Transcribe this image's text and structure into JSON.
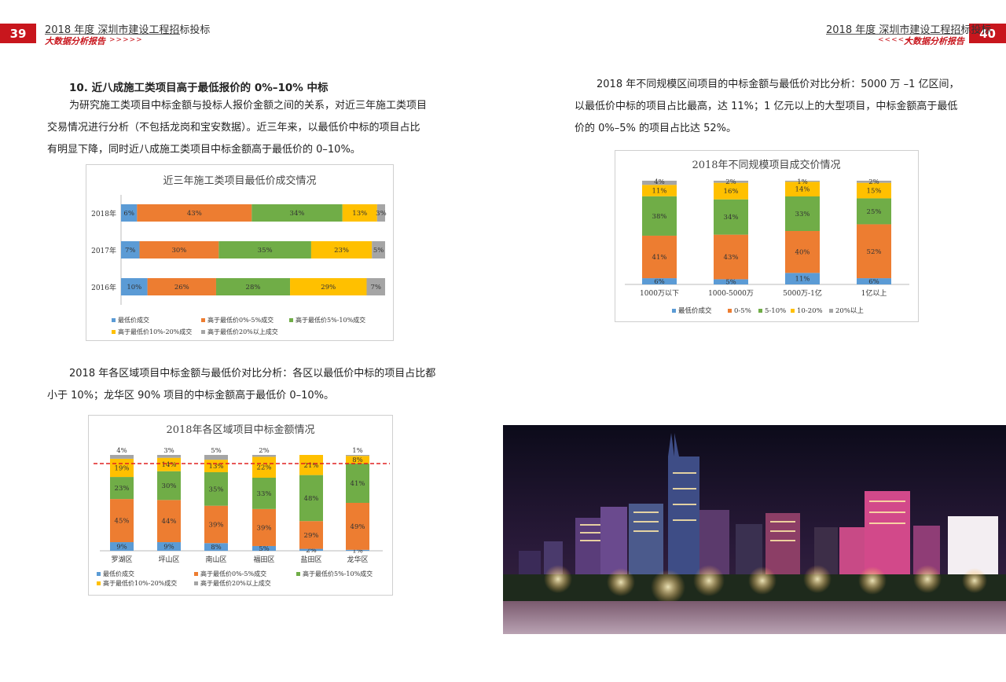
{
  "header": {
    "left_page_number": "39",
    "right_page_number": "40",
    "title": "2018 年度 深圳市建设工程招标投标",
    "subtitle": "大数据分析报告",
    "arrows_right": ">>>>>",
    "arrows_left": "<<<<<"
  },
  "left": {
    "heading": "10. 近八成施工类项目高于最低报价的 0%–10% 中标",
    "para1": [
      "为研究施工类项目中标金额与投标人报价金额之间的关系，对近三年施工类项目",
      "交易情况进行分析（不包括龙岗和宝安数据）。近三年来，以最低价中标的项目占比",
      "有明显下降，同时近八成施工类项目中标金额高于最低价的 0–10%。"
    ],
    "para2": [
      "2018 年各区域项目中标金额与最低价对比分析：各区以最低价中标的项目占比都",
      "小于 10%；龙华区 90% 项目的中标金额高于最低价 0–10%。"
    ]
  },
  "right": {
    "para": [
      "2018 年不同规模区间项目的中标金额与最低价对比分析：5000 万 –1 亿区间，",
      "以最低价中标的项目占比最高，达 11%；1 亿元以上的大型项目，中标金额高于最低",
      "价的 0%–5% 的项目占比达 52%。"
    ]
  },
  "colors": {
    "blue": "#5b9bd5",
    "orange": "#ed7d31",
    "green": "#70ad47",
    "yellow": "#ffc000",
    "gray": "#a5a5a5",
    "brand_red": "#c8161d"
  },
  "chart_data": [
    {
      "type": "bar",
      "orientation": "horizontal-stacked",
      "title": "近三年施工类项目最低价成交情况",
      "categories": [
        "2018年",
        "2017年",
        "2016年"
      ],
      "series": [
        {
          "name": "最低价成交",
          "values": [
            6,
            7,
            10
          ],
          "labels": [
            "6%",
            "7%",
            "10%"
          ]
        },
        {
          "name": "高于最低价0%-5%成交",
          "values": [
            43,
            30,
            26
          ],
          "labels": [
            "43%",
            "30%",
            "26%"
          ]
        },
        {
          "name": "高于最低价5%-10%成交",
          "values": [
            34,
            35,
            28
          ],
          "labels": [
            "34%",
            "35%",
            "28%"
          ]
        },
        {
          "name": "高于最低价10%-20%成交",
          "values": [
            13,
            23,
            29
          ],
          "labels": [
            "13%",
            "23%",
            "29%"
          ]
        },
        {
          "name": "高于最低价20%以上成交",
          "values": [
            3,
            5,
            7
          ],
          "labels": [
            "3%",
            "5%",
            "7%"
          ]
        }
      ],
      "legend_position": "bottom"
    },
    {
      "type": "bar",
      "orientation": "vertical-stacked",
      "title": "2018年各区域项目中标金额情况",
      "categories": [
        "罗湖区",
        "坪山区",
        "南山区",
        "福田区",
        "盐田区",
        "龙华区"
      ],
      "series": [
        {
          "name": "最低价成交",
          "values": [
            9,
            9,
            8,
            5,
            2,
            1
          ],
          "labels": [
            "9%",
            "9%",
            "8%",
            "5%",
            "2%",
            "1%"
          ]
        },
        {
          "name": "高于最低价0%-5%成交",
          "values": [
            45,
            44,
            39,
            39,
            29,
            49
          ],
          "labels": [
            "45%",
            "44%",
            "39%",
            "39%",
            "29%",
            "49%"
          ]
        },
        {
          "name": "高于最低价5%-10%成交",
          "values": [
            23,
            30,
            35,
            33,
            48,
            41
          ],
          "labels": [
            "23%",
            "30%",
            "35%",
            "33%",
            "48%",
            "41%"
          ]
        },
        {
          "name": "高于最低价10%-20%成交",
          "values": [
            19,
            14,
            13,
            22,
            21,
            8
          ],
          "labels": [
            "19%",
            "14%",
            "13%",
            "22%",
            "21%",
            "8%"
          ]
        },
        {
          "name": "高于最低价20%以上成交",
          "values": [
            4,
            3,
            5,
            2,
            0,
            1
          ],
          "labels": [
            "4%",
            "3%",
            "5%",
            "2%",
            "",
            "1%"
          ]
        }
      ],
      "reference_line": "dashed red",
      "legend_position": "bottom"
    },
    {
      "type": "bar",
      "orientation": "vertical-stacked",
      "title": "2018年不同规模项目成交价情况",
      "categories": [
        "1000万以下",
        "1000-5000万",
        "5000万-1亿",
        "1亿以上"
      ],
      "series": [
        {
          "name": "最低价成交",
          "values": [
            6,
            5,
            11,
            6
          ],
          "labels": [
            "6%",
            "5%",
            "11%",
            "6%"
          ]
        },
        {
          "name": "0-5%",
          "values": [
            41,
            43,
            40,
            52
          ],
          "labels": [
            "41%",
            "43%",
            "40%",
            "52%"
          ]
        },
        {
          "name": "5-10%",
          "values": [
            38,
            34,
            33,
            25
          ],
          "labels": [
            "38%",
            "34%",
            "33%",
            "25%"
          ]
        },
        {
          "name": "10-20%",
          "values": [
            11,
            16,
            14,
            15
          ],
          "labels": [
            "11%",
            "16%",
            "14%",
            "15%"
          ]
        },
        {
          "name": "20%以上",
          "values": [
            4,
            2,
            1,
            2
          ],
          "labels": [
            "4%",
            "2%",
            "1%",
            "2%"
          ]
        }
      ],
      "legend_position": "bottom"
    }
  ]
}
